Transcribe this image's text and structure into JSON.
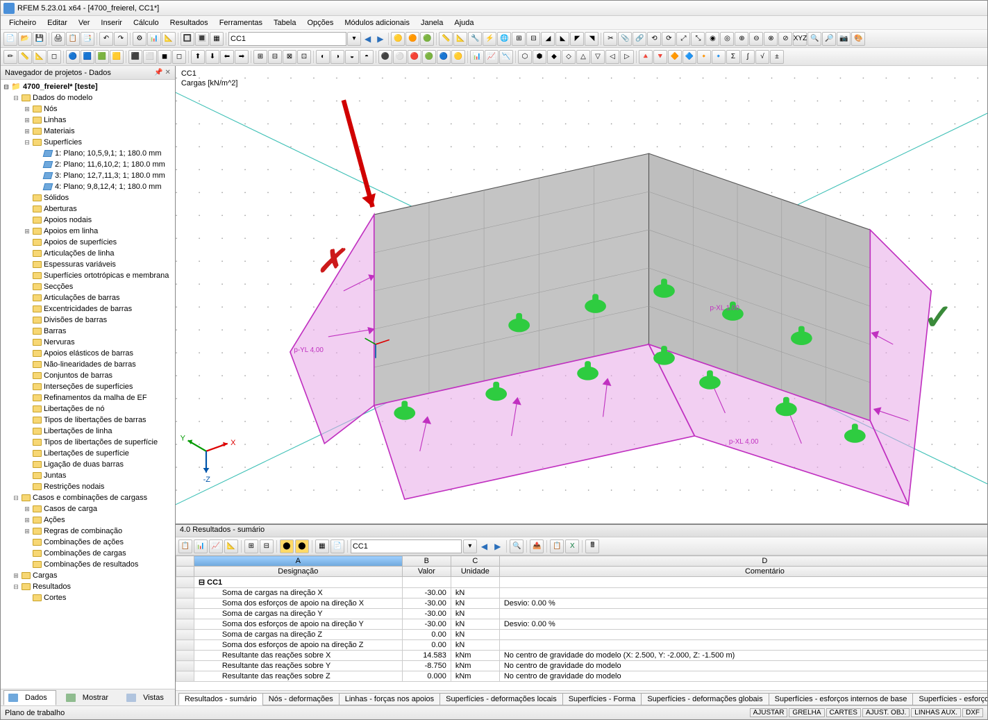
{
  "title": "RFEM 5.23.01 x64 - [4700_freierel, CC1*]",
  "menubar": [
    "Ficheiro",
    "Editar",
    "Ver",
    "Inserir",
    "Cálculo",
    "Resultados",
    "Ferramentas",
    "Tabela",
    "Opções",
    "Módulos adicionais",
    "Janela",
    "Ajuda"
  ],
  "toolbar_combo": "CC1",
  "navigator": {
    "title": "Navegador de projetos - Dados",
    "root": "4700_freierel* [teste]",
    "model_data": "Dados do modelo",
    "nodes": "Nós",
    "lines": "Linhas",
    "materials": "Materiais",
    "surfaces": "Superfícies",
    "surf1": "1: Plano; 10,5,9,1; 1; 180.0 mm",
    "surf2": "2: Plano; 11,6,10,2; 1; 180.0 mm",
    "surf3": "3: Plano; 12,7,11,3; 1; 180.0 mm",
    "surf4": "4: Plano; 9,8,12,4; 1; 180.0 mm",
    "solids": "Sólidos",
    "openings": "Aberturas",
    "nodal_supports": "Apoios nodais",
    "line_supports": "Apoios em linha",
    "surface_supports": "Apoios de superfícies",
    "line_hinges": "Articulações de linha",
    "var_thick": "Espessuras variáveis",
    "ortho": "Superfícies ortotrópicas e membrana",
    "sections": "Secções",
    "member_hinges": "Articulações de barras",
    "member_ecc": "Excentricidades de barras",
    "member_div": "Divisões de barras",
    "members": "Barras",
    "ribs": "Nervuras",
    "elastic_found": "Apoios elásticos de barras",
    "nonlin": "Não-linearidades de barras",
    "member_sets": "Conjuntos de barras",
    "intersections": "Interseções de superfícies",
    "mesh_refine": "Refinamentos da malha de EF",
    "node_release": "Libertações de nó",
    "node_release_types": "Tipos de libertações de barras",
    "line_release": "Libertações de linha",
    "surf_release_types": "Tipos de libertações de superfície",
    "surf_release": "Libertações de superfície",
    "two_member": "Ligação de duas barras",
    "joints": "Juntas",
    "nodal_constraints": "Restrições nodais",
    "load_cases_combos": "Casos e combinações de cargass",
    "load_cases": "Casos de carga",
    "actions": "Ações",
    "combo_rules": "Regras de combinação",
    "action_combos": "Combinações de ações",
    "load_combos": "Combinações de cargas",
    "result_combos": "Combinações de resultados",
    "loads": "Cargas",
    "results": "Resultados",
    "cortes": "Cortes"
  },
  "sidebar_tabs": {
    "data": "Dados",
    "show": "Mostrar",
    "views": "Vistas"
  },
  "viewport": {
    "line1": "CC1",
    "line2": "Cargas [kN/m^2]",
    "label_pyl": "p-YL 4.00",
    "label_pxl": "p-XL 1.00",
    "label_pxl2": "p-XL 4.00",
    "ax_x": "X",
    "ax_y": "Y",
    "ax_z": "-Z"
  },
  "results": {
    "panel_title": "4.0 Resultados - sumário",
    "combo": "CC1",
    "colA": "A",
    "colB": "B",
    "colC": "C",
    "colD": "D",
    "hdr_desig": "Designação",
    "hdr_valor": "Valor",
    "hdr_unidade": "Unidade",
    "hdr_comment": "Comentário",
    "cc1": "CC1",
    "rows": [
      {
        "d": "Soma de cargas na direção X",
        "v": "-30.00",
        "u": "kN",
        "c": ""
      },
      {
        "d": "Soma dos esforços de apoio na direção X",
        "v": "-30.00",
        "u": "kN",
        "c": "Desvio:  0.00 %"
      },
      {
        "d": "Soma de cargas na direção Y",
        "v": "-30.00",
        "u": "kN",
        "c": ""
      },
      {
        "d": "Soma dos esforços de apoio na direção Y",
        "v": "-30.00",
        "u": "kN",
        "c": "Desvio:  0.00 %"
      },
      {
        "d": "Soma de cargas na direção Z",
        "v": "0.00",
        "u": "kN",
        "c": ""
      },
      {
        "d": "Soma dos esforços de apoio na direção Z",
        "v": "0.00",
        "u": "kN",
        "c": ""
      },
      {
        "d": "Resultante das reações sobre X",
        "v": "14.583",
        "u": "kNm",
        "c": "No centro de gravidade do modelo (X: 2.500, Y: -2.000, Z: -1.500 m)"
      },
      {
        "d": "Resultante das reações sobre Y",
        "v": "-8.750",
        "u": "kNm",
        "c": "No centro de gravidade do modelo"
      },
      {
        "d": "Resultante das reações sobre Z",
        "v": "0.000",
        "u": "kNm",
        "c": "No centro de gravidade do modelo"
      }
    ],
    "tabs": [
      "Resultados - sumário",
      "Nós - deformações",
      "Linhas - forças nos apoios",
      "Superfícies - deformações locais",
      "Superfícies - Forma",
      "Superfícies - deformações globais",
      "Superfícies - esforços internos de base",
      "Superfícies - esforços internos"
    ]
  },
  "status": {
    "left": "Plano de trabalho",
    "right": [
      "AJUSTAR",
      "GRELHA",
      "CARTES",
      "AJUST. OBJ.",
      "LINHAS AUX.",
      "DXF"
    ]
  }
}
